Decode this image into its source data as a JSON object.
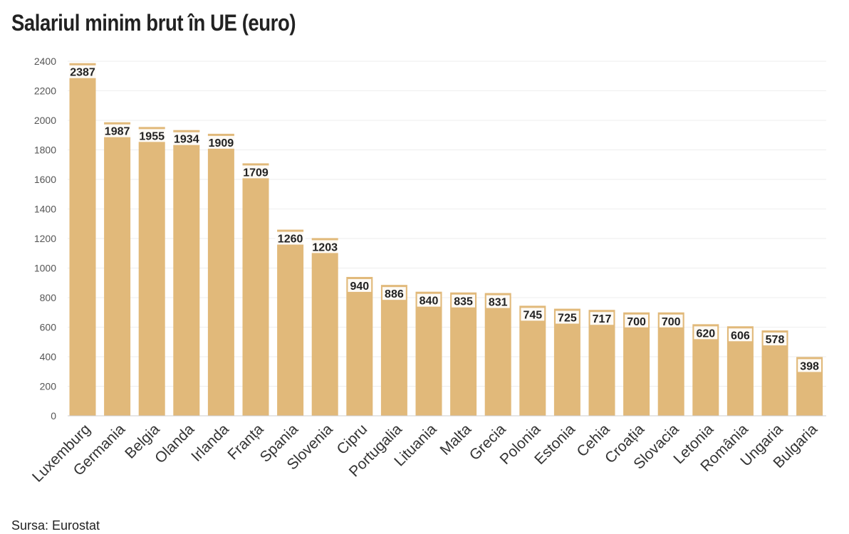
{
  "title": "Salariul minim brut în UE (euro)",
  "source": "Sursa: Eurostat",
  "colors": {
    "bar": "#e1b97a",
    "grid": "#eeeeee",
    "label_bg": "#ffffff"
  },
  "chart_data": {
    "type": "bar",
    "title": "Salariul minim brut în UE (euro)",
    "xlabel": "",
    "ylabel": "",
    "ylim": [
      0,
      2400
    ],
    "yticks": [
      0,
      200,
      400,
      600,
      800,
      1000,
      1200,
      1400,
      1600,
      1800,
      2000,
      2200,
      2400
    ],
    "grid": true,
    "categories": [
      "Luxemburg",
      "Germania",
      "Belgia",
      "Olanda",
      "Irlanda",
      "Franța",
      "Spania",
      "Slovenia",
      "Cipru",
      "Portugalia",
      "Lituania",
      "Malta",
      "Grecia",
      "Polonia",
      "Estonia",
      "Cehia",
      "Croația",
      "Slovacia",
      "Letonia",
      "România",
      "Ungaria",
      "Bulgaria"
    ],
    "values": [
      2387,
      1987,
      1955,
      1934,
      1909,
      1709,
      1260,
      1203,
      940,
      886,
      840,
      835,
      831,
      745,
      725,
      717,
      700,
      700,
      620,
      606,
      578,
      398
    ]
  }
}
